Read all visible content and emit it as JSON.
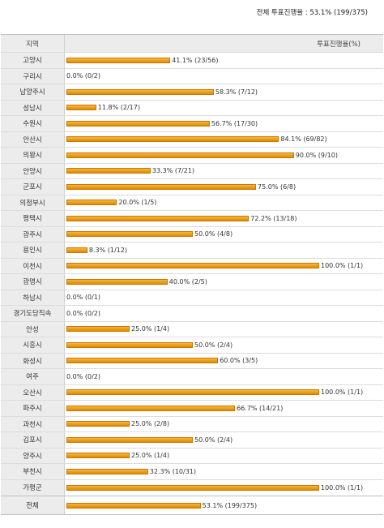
{
  "summary": "전체 투표진행율 : 53.1% (199/375)",
  "header": {
    "region": "지역",
    "rate": "투표진행율(%)"
  },
  "rows": [
    {
      "region": "고양시",
      "pct": 41.1,
      "label": "41.1% (23/56)"
    },
    {
      "region": "구리시",
      "pct": 0.0,
      "label": "0.0% (0/2)"
    },
    {
      "region": "남양주시",
      "pct": 58.3,
      "label": "58.3% (7/12)"
    },
    {
      "region": "성남시",
      "pct": 11.8,
      "label": "11.8% (2/17)"
    },
    {
      "region": "수원시",
      "pct": 56.7,
      "label": "56.7% (17/30)"
    },
    {
      "region": "안산시",
      "pct": 84.1,
      "label": "84.1% (69/82)"
    },
    {
      "region": "의왕시",
      "pct": 90.0,
      "label": "90.0% (9/10)"
    },
    {
      "region": "안양시",
      "pct": 33.3,
      "label": "33.3% (7/21)"
    },
    {
      "region": "군포시",
      "pct": 75.0,
      "label": "75.0% (6/8)"
    },
    {
      "region": "의정부시",
      "pct": 20.0,
      "label": "20.0% (1/5)"
    },
    {
      "region": "평택시",
      "pct": 72.2,
      "label": "72.2% (13/18)"
    },
    {
      "region": "광주시",
      "pct": 50.0,
      "label": "50.0% (4/8)"
    },
    {
      "region": "용인시",
      "pct": 8.3,
      "label": "8.3% (1/12)"
    },
    {
      "region": "이천시",
      "pct": 100.0,
      "label": "100.0% (1/1)"
    },
    {
      "region": "광명시",
      "pct": 40.0,
      "label": "40.0% (2/5)"
    },
    {
      "region": "하남시",
      "pct": 0.0,
      "label": "0.0% (0/1)"
    },
    {
      "region": "경기도당직속",
      "pct": 0.0,
      "label": "0.0% (0/2)"
    },
    {
      "region": "안성",
      "pct": 25.0,
      "label": "25.0% (1/4)"
    },
    {
      "region": "시흥시",
      "pct": 50.0,
      "label": "50.0% (2/4)"
    },
    {
      "region": "화성시",
      "pct": 60.0,
      "label": "60.0% (3/5)"
    },
    {
      "region": "여주",
      "pct": 0.0,
      "label": "0.0% (0/2)"
    },
    {
      "region": "오산시",
      "pct": 100.0,
      "label": "100.0% (1/1)"
    },
    {
      "region": "파주시",
      "pct": 66.7,
      "label": "66.7% (14/21)"
    },
    {
      "region": "과천시",
      "pct": 25.0,
      "label": "25.0% (2/8)"
    },
    {
      "region": "김포시",
      "pct": 50.0,
      "label": "50.0% (2/4)"
    },
    {
      "region": "양주시",
      "pct": 25.0,
      "label": "25.0% (1/4)"
    },
    {
      "region": "부천시",
      "pct": 32.3,
      "label": "32.3% (10/31)"
    },
    {
      "region": "가평군",
      "pct": 100.0,
      "label": "100.0% (1/1)"
    }
  ],
  "total": {
    "region": "전체",
    "pct": 53.1,
    "label": "53.1% (199/375)"
  },
  "colors": {
    "bar": "#f0a020",
    "bar_border": "#c97900",
    "region_bg": "#ececec"
  }
}
